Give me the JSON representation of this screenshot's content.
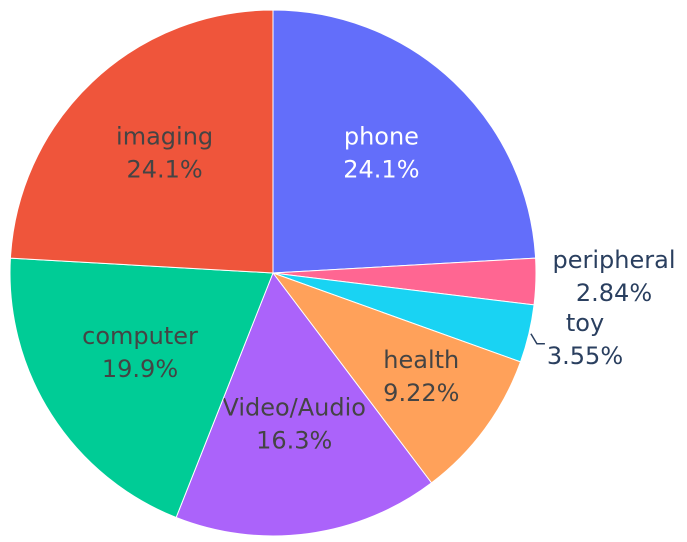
{
  "chart_data": {
    "type": "pie",
    "slices": [
      {
        "label": "phone",
        "percent": 24.1,
        "percent_text": "24.1%",
        "color": "#636efa"
      },
      {
        "label": "peripheral",
        "percent": 2.84,
        "percent_text": "2.84%",
        "color": "#ff6692"
      },
      {
        "label": "toy",
        "percent": 3.55,
        "percent_text": "3.55%",
        "color": "#19d3f3"
      },
      {
        "label": "health",
        "percent": 9.22,
        "percent_text": "9.22%",
        "color": "#ffa15a"
      },
      {
        "label": "Video/Audio",
        "percent": 16.3,
        "percent_text": "16.3%",
        "color": "#ab63fa"
      },
      {
        "label": "computer",
        "percent": 19.9,
        "percent_text": "19.9%",
        "color": "#00cc96"
      },
      {
        "label": "imaging",
        "percent": 24.1,
        "percent_text": "24.1%",
        "color": "#ef553b"
      }
    ],
    "direction": "clockwise",
    "start": "12 o'clock",
    "label_text_color_inside_dark": "#ffffff",
    "label_text_color_inside_light": "#444444",
    "label_text_color_outside": "#2a3f5f"
  }
}
